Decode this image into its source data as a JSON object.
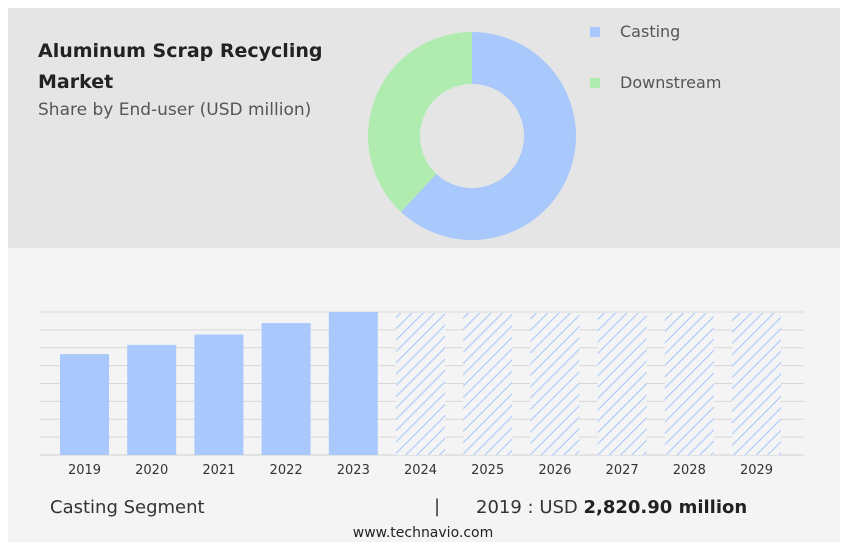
{
  "header": {
    "title": "Aluminum Scrap Recycling Market",
    "subtitle": "Share by End-user (USD million)"
  },
  "legend": [
    {
      "label": "Casting",
      "color": "#a9c8fb"
    },
    {
      "label": "Downstream",
      "color": "#b0ecb0"
    }
  ],
  "footer": {
    "segment": "Casting Segment",
    "separator": "|",
    "year_prefix": "2019 : USD ",
    "value": "2,820.90 million",
    "source": "www.technavio.com"
  },
  "chart_data": [
    {
      "type": "pie",
      "variant": "donut",
      "title": "Aluminum Scrap Recycling Market",
      "subtitle": "Share by End-user (USD million)",
      "categories": [
        "Casting",
        "Downstream"
      ],
      "values": [
        62,
        38
      ],
      "colors": [
        "#a9c8fb",
        "#b0ecb0"
      ],
      "legend_position": "right"
    },
    {
      "type": "bar",
      "categories": [
        "2019",
        "2020",
        "2021",
        "2022",
        "2023",
        "2024",
        "2025",
        "2026",
        "2027",
        "2028",
        "2029"
      ],
      "values": [
        2820.9,
        3080,
        3370,
        3690,
        4000,
        null,
        null,
        null,
        null,
        null,
        null
      ],
      "forecast_categories": [
        "2024",
        "2025",
        "2026",
        "2027",
        "2028",
        "2029"
      ],
      "bar_color": "#a9c8fb",
      "forecast_style": "hatched",
      "grid": true,
      "ylim": [
        0,
        4000
      ]
    }
  ]
}
